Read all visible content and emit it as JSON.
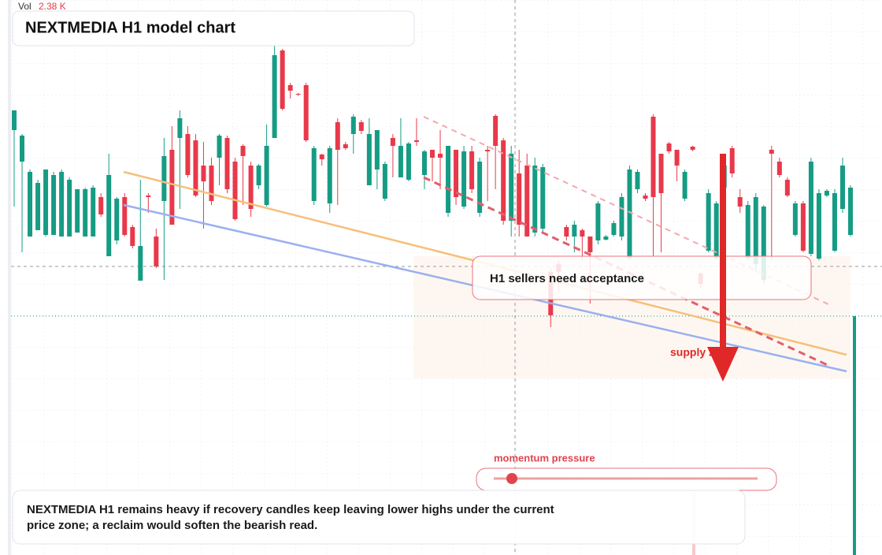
{
  "chart_data": {
    "type": "candlestick",
    "title": "NEXTMEDIA H1 model chart",
    "volume_label": "Vol",
    "volume_value": "2.38 K",
    "callout": "H1 sellers need acceptance",
    "zone_label": "supply zone",
    "gauge_label": "momentum pressure",
    "note": "NEXTMEDIA H1 remains heavy if recovery candles keep leaving lower highs under the current price zone; a reclaim would soften the bearish read.",
    "up_color": "#169c84",
    "down_color": "#e8394a",
    "ylim": [
      0,
      704
    ],
    "open": [
      539,
      499,
      404,
      412,
      406,
      406,
      404,
      404,
      409,
      404,
      404,
      454,
      379,
      399,
      454,
      416,
      348,
      456,
      404,
      449,
      514,
      529,
      534,
      526,
      494,
      494,
      504,
      529,
      499,
      519,
      494,
      469,
      444,
      529,
      640,
      596,
      585,
      596,
      449,
      508,
      446,
      549,
      521,
      534,
      549,
      469,
      489,
      452,
      529,
      479,
      476,
      526,
      482,
      514,
      509,
      434,
      514,
      442,
      512,
      434,
      514,
      557,
      526,
      424,
      484,
      494,
      409,
      414,
      359,
      369,
      416,
      404,
      412,
      404,
      399,
      400,
      406,
      404,
      376,
      464,
      456,
      556,
      509,
      522,
      514,
      452,
      518,
      357,
      386,
      376,
      466,
      516,
      454,
      376,
      369,
      349,
      514,
      499,
      476,
      406,
      446,
      382,
      376,
      456,
      386,
      439,
      406
    ],
    "high": [
      564,
      534,
      489,
      476,
      489,
      486,
      489,
      479,
      464,
      466,
      469,
      459,
      509,
      454,
      459,
      419,
      476,
      459,
      414,
      529,
      544,
      564,
      544,
      534,
      524,
      504,
      534,
      532,
      504,
      521,
      499,
      496,
      546,
      649,
      642,
      599,
      586,
      599,
      519,
      509,
      519,
      554,
      524,
      559,
      552,
      554,
      539,
      499,
      534,
      554,
      524,
      554,
      514,
      514,
      539,
      519,
      514,
      519,
      519,
      504,
      519,
      559,
      529,
      519,
      514,
      509,
      504,
      496,
      364,
      374,
      419,
      424,
      414,
      404,
      449,
      406,
      424,
      459,
      494,
      489,
      459,
      559,
      509,
      524,
      514,
      489,
      519,
      359,
      464,
      449,
      509,
      519,
      464,
      449,
      459,
      444,
      519,
      504,
      479,
      449,
      449,
      504,
      464,
      464,
      464,
      504,
      469
    ],
    "low": [
      442,
      384,
      404,
      412,
      404,
      406,
      404,
      404,
      409,
      404,
      404,
      429,
      379,
      394,
      404,
      389,
      348,
      434,
      364,
      349,
      419,
      439,
      479,
      454,
      414,
      444,
      469,
      459,
      424,
      444,
      429,
      464,
      442,
      529,
      564,
      579,
      582,
      524,
      444,
      494,
      434,
      444,
      514,
      509,
      534,
      469,
      464,
      449,
      479,
      479,
      474,
      519,
      464,
      474,
      464,
      429,
      444,
      439,
      459,
      429,
      449,
      464,
      419,
      404,
      404,
      404,
      404,
      409,
      289,
      334,
      399,
      384,
      374,
      319,
      394,
      399,
      404,
      399,
      374,
      459,
      449,
      379,
      384,
      509,
      474,
      449,
      512,
      339,
      384,
      374,
      464,
      479,
      434,
      374,
      359,
      344,
      374,
      479,
      454,
      404,
      384,
      379,
      374,
      454,
      384,
      434,
      404
    ],
    "close": [
      564,
      532,
      486,
      472,
      489,
      482,
      486,
      476,
      464,
      464,
      466,
      432,
      482,
      452,
      406,
      392,
      392,
      454,
      366,
      506,
      419,
      554,
      482,
      456,
      474,
      449,
      532,
      464,
      426,
      506,
      439,
      494,
      519,
      634,
      566,
      589,
      584,
      526,
      516,
      502,
      516,
      514,
      516,
      556,
      538,
      534,
      539,
      496,
      519,
      519,
      522,
      524,
      512,
      504,
      504,
      519,
      454,
      512,
      464,
      499,
      512,
      519,
      424,
      509,
      419,
      404,
      494,
      492,
      304,
      359,
      404,
      419,
      404,
      384,
      446,
      404,
      421,
      454,
      489,
      486,
      452,
      454,
      459,
      512,
      494,
      486,
      514,
      344,
      459,
      446,
      494,
      484,
      442,
      444,
      454,
      442,
      509,
      482,
      456,
      446,
      386,
      499,
      459,
      462,
      459,
      494,
      466
    ]
  }
}
